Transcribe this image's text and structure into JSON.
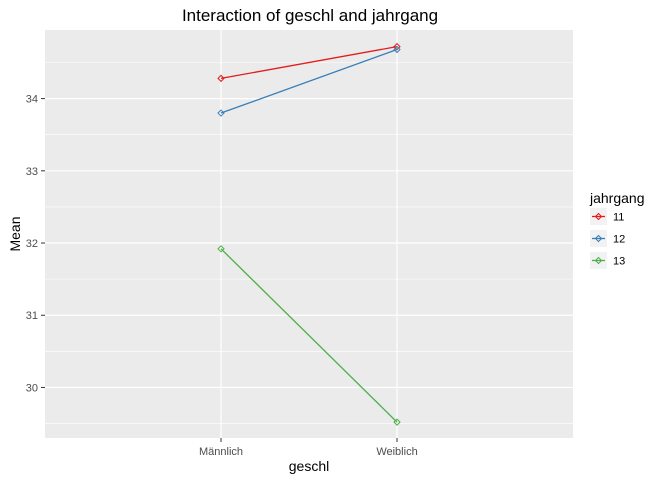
{
  "chart_data": {
    "type": "line",
    "title": "Interaction of  geschl and jahrgang",
    "xlabel": "geschl",
    "ylabel": "Mean",
    "categories": [
      "Männlich",
      "Weiblich"
    ],
    "ylim": [
      29.3,
      34.95
    ],
    "yticks": [
      30,
      31,
      32,
      33,
      34
    ],
    "grid": true,
    "legend": {
      "title": "jahrgang",
      "placement": "right"
    },
    "series": [
      {
        "name": "11",
        "values": [
          34.28,
          34.72
        ],
        "color": "#e41a1c"
      },
      {
        "name": "12",
        "values": [
          33.8,
          34.68
        ],
        "color": "#377eb8"
      },
      {
        "name": "13",
        "values": [
          31.92,
          29.52
        ],
        "color": "#4daf4a"
      }
    ]
  }
}
